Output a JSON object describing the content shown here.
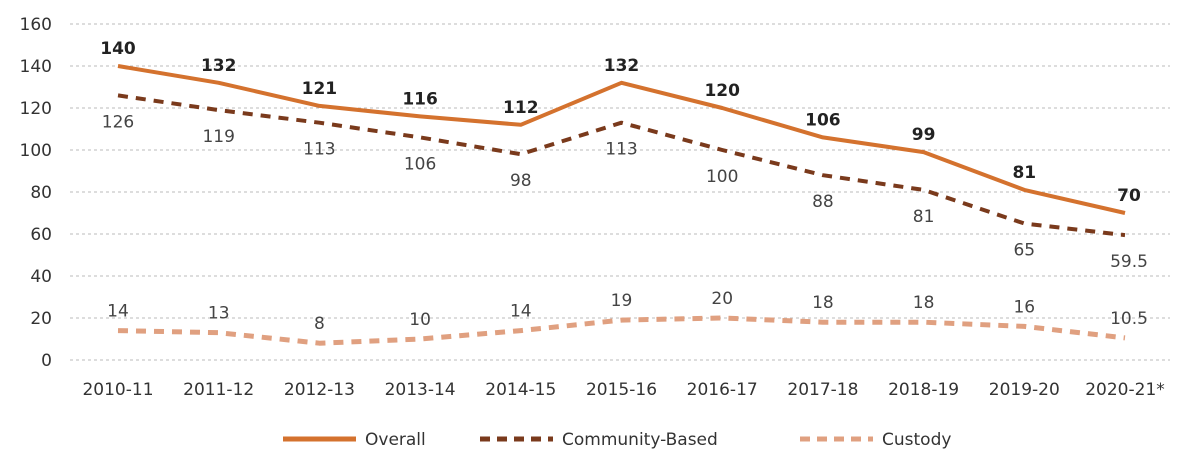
{
  "chart_data": {
    "type": "line",
    "categories": [
      "2010-11",
      "2011-12",
      "2012-13",
      "2013-14",
      "2014-15",
      "2015-16",
      "2016-17",
      "2017-18",
      "2018-19",
      "2019-20",
      "2020-21*"
    ],
    "ylim": [
      0,
      160
    ],
    "y_ticks": [
      "0",
      "20",
      "40",
      "60",
      "80",
      "100",
      "120",
      "140",
      "160"
    ],
    "grid": "horizontal dashed",
    "legend_position": "bottom",
    "series": [
      {
        "name": "Overall",
        "values": [
          140,
          132,
          121,
          116,
          112,
          132,
          120,
          106,
          99,
          81,
          70
        ],
        "labels": [
          "140",
          "132",
          "121",
          "116",
          "112",
          "132",
          "120",
          "106",
          "99",
          "81",
          "70"
        ],
        "color": "#d4722e",
        "style": "solid"
      },
      {
        "name": "Community-Based",
        "values": [
          126,
          119,
          113,
          106,
          98,
          113,
          100,
          88,
          81,
          65,
          59.5
        ],
        "labels": [
          "126",
          "119",
          "113",
          "106",
          "98",
          "113",
          "100",
          "88",
          "81",
          "65",
          "59.5"
        ],
        "color": "#7a3a1c",
        "style": "dashed"
      },
      {
        "name": "Custody",
        "values": [
          14,
          13,
          8,
          10,
          14,
          19,
          20,
          18,
          18,
          16,
          10.5
        ],
        "labels": [
          "14",
          "13",
          "8",
          "10",
          "14",
          "19",
          "20",
          "18",
          "18",
          "16",
          "10.5"
        ],
        "color": "#e0a080",
        "style": "dashed"
      }
    ]
  }
}
